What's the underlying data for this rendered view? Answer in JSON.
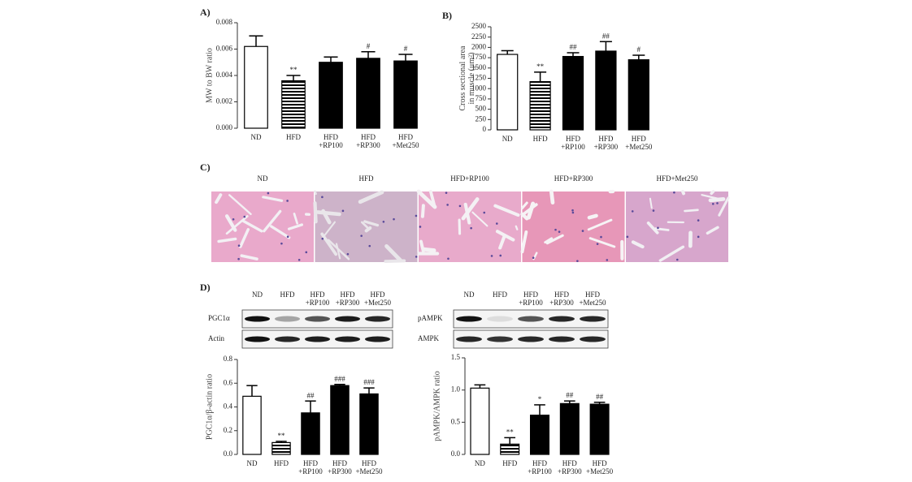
{
  "chart_data": [
    {
      "type": "bar",
      "panel": "A)",
      "ylabel": "MW to BW ratio",
      "categories": [
        "ND",
        "HFD",
        "HFD\n+RP100",
        "HFD\n+RP300",
        "HFD\n+Met250"
      ],
      "values": [
        0.0062,
        0.0036,
        0.005,
        0.0053,
        0.0051
      ],
      "errors": [
        0.0008,
        0.0004,
        0.0004,
        0.0005,
        0.0005
      ],
      "annotations": [
        null,
        "**",
        null,
        "#",
        "#"
      ],
      "fills": [
        "white",
        "stripes",
        "black",
        "black",
        "black"
      ],
      "ylim": [
        0,
        0.008
      ],
      "yticks": [
        {
          "value": 0,
          "label": "0.000"
        },
        {
          "value": 0.002,
          "label": "0.002"
        },
        {
          "value": 0.004,
          "label": "0.004"
        },
        {
          "value": 0.006,
          "label": "0.006"
        },
        {
          "value": 0.008,
          "label": "0.008"
        }
      ]
    },
    {
      "type": "bar",
      "panel": "B)",
      "ylabel": "Cross sectional area\nin muscle (μm²)",
      "categories": [
        "ND",
        "HFD",
        "HFD\n+RP100",
        "HFD\n+RP300",
        "HFD\n+Met250"
      ],
      "values": [
        1830,
        1170,
        1780,
        1910,
        1700
      ],
      "errors": [
        90,
        230,
        90,
        230,
        110
      ],
      "annotations": [
        null,
        "**",
        "##",
        "##",
        "#"
      ],
      "fills": [
        "white",
        "stripes",
        "black",
        "black",
        "black"
      ],
      "ylim": [
        0,
        2500
      ],
      "yticks": [
        0,
        250,
        500,
        750,
        1000,
        1250,
        1500,
        1750,
        2000,
        2250,
        2500
      ]
    },
    {
      "type": "bar",
      "ylabel": "PGC1α/β-actin ratio",
      "categories": [
        "ND",
        "HFD",
        "HFD\n+RP100",
        "HFD\n+RP300",
        "HFD\n+Met250"
      ],
      "values": [
        0.49,
        0.1,
        0.35,
        0.58,
        0.51
      ],
      "errors": [
        0.09,
        0.01,
        0.1,
        0.01,
        0.05
      ],
      "annotations": [
        null,
        "**",
        "##",
        "###",
        "###"
      ],
      "fills": [
        "white",
        "stripes",
        "black",
        "black",
        "black"
      ],
      "ylim": [
        0,
        0.8
      ],
      "yticks": [
        {
          "value": 0,
          "label": "0.0"
        },
        0.2,
        0.4,
        0.6,
        0.8
      ]
    },
    {
      "type": "bar",
      "ylabel": "pAMPK/AMPK ratio",
      "categories": [
        "ND",
        "HFD",
        "HFD\n+RP100",
        "HFD\n+RP300",
        "HFD\n+Met250"
      ],
      "values": [
        1.03,
        0.16,
        0.61,
        0.79,
        0.78
      ],
      "errors": [
        0.05,
        0.1,
        0.16,
        0.04,
        0.03
      ],
      "annotations": [
        null,
        "**",
        "*",
        "##",
        "##"
      ],
      "fills": [
        "white",
        "stripes",
        "black",
        "black",
        "black"
      ],
      "ylim": [
        0,
        1.5
      ],
      "yticks": [
        {
          "value": 0,
          "label": "0.0"
        },
        0.5,
        {
          "value": 1,
          "label": "1.0"
        },
        1.5
      ]
    }
  ],
  "histology": {
    "panel": "C)",
    "labels": [
      "ND",
      "HFD",
      "HFD+RP100",
      "HFD+RP300",
      "HFD+Met250"
    ]
  },
  "blots": {
    "panel": "D)",
    "items": [
      {
        "lanes": [
          "ND",
          "HFD",
          "HFD\n+RP100",
          "HFD\n+RP300",
          "HFD\n+Met250"
        ],
        "rows": [
          "PGC1α",
          "Actin"
        ]
      },
      {
        "lanes": [
          "ND",
          "HFD",
          "HFD\n+RP100",
          "HFD\n+RP300",
          "HFD\n+Met250"
        ],
        "rows": [
          "pAMPK",
          "AMPK"
        ]
      }
    ]
  }
}
